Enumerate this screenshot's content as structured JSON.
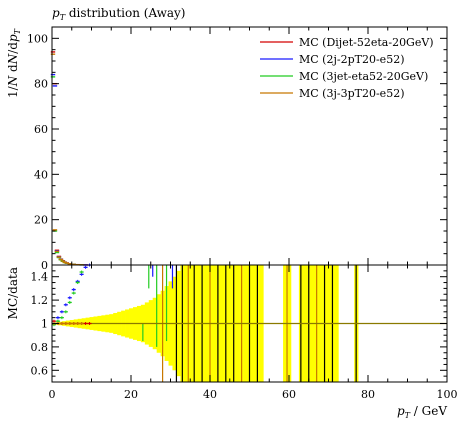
{
  "chart_data": [
    {
      "panel": "main",
      "type": "scatter",
      "title_base": "p",
      "title_sub": "T",
      "title_rest": " distribution (Away)",
      "ylabel_prefix": "1/N dN/dp",
      "ylabel_sub": "T",
      "xlim": [
        0,
        100
      ],
      "ylim": [
        0,
        105
      ],
      "yticks": [
        0,
        20,
        40,
        60,
        80,
        100
      ],
      "series": [
        {
          "name": "MC (Dijet-52eta-20GeV)",
          "color": "#d40000",
          "points": [
            [
              0.25,
              94
            ],
            [
              0.75,
              80
            ],
            [
              1.25,
              6.5
            ],
            [
              1.75,
              3.8
            ],
            [
              2.25,
              2.6
            ],
            [
              2.75,
              1.9
            ],
            [
              3.25,
              1.3
            ],
            [
              3.75,
              0.9
            ],
            [
              4.5,
              0.55
            ],
            [
              5.5,
              0.3
            ],
            [
              6.5,
              0.15
            ],
            [
              7.5,
              0.08
            ],
            [
              8.5,
              0.04
            ]
          ]
        },
        {
          "name": "MC (2j-2pT20-e52)",
          "color": "#1a1aff",
          "points": [
            [
              0.25,
              84
            ],
            [
              0.75,
              79
            ],
            [
              1.25,
              6.2
            ],
            [
              1.75,
              3.6
            ],
            [
              2.25,
              2.5
            ],
            [
              2.75,
              1.8
            ],
            [
              3.25,
              1.2
            ],
            [
              3.75,
              0.85
            ],
            [
              4.5,
              0.5
            ],
            [
              5.5,
              0.28
            ],
            [
              6.5,
              0.14
            ],
            [
              7.5,
              0.07
            ],
            [
              8.5,
              0.035
            ]
          ]
        },
        {
          "name": "MC (3jet-eta52-20GeV)",
          "color": "#22cc22",
          "points": [
            [
              0.25,
              83
            ],
            [
              0.75,
              15
            ],
            [
              1.25,
              5.5
            ],
            [
              1.75,
              3.3
            ],
            [
              2.25,
              2.3
            ],
            [
              2.75,
              1.6
            ],
            [
              3.25,
              1.1
            ],
            [
              3.75,
              0.8
            ],
            [
              4.5,
              0.45
            ],
            [
              5.5,
              0.25
            ],
            [
              6.5,
              0.12
            ],
            [
              7.5,
              0.06
            ]
          ]
        },
        {
          "name": "MC (3j-3pT20-e52)",
          "color": "#c87800",
          "points": [
            [
              0.25,
              93
            ],
            [
              0.75,
              15.5
            ],
            [
              1.25,
              6.0
            ],
            [
              1.75,
              3.5
            ],
            [
              2.25,
              2.45
            ],
            [
              2.75,
              1.75
            ],
            [
              3.25,
              1.15
            ],
            [
              3.75,
              0.85
            ],
            [
              4.5,
              0.5
            ],
            [
              5.5,
              0.27
            ],
            [
              6.5,
              0.13
            ],
            [
              7.5,
              0.07
            ]
          ]
        }
      ]
    },
    {
      "panel": "ratio",
      "type": "scatter",
      "ylabel": "MC/data",
      "xlabel_base": "p",
      "xlabel_sub": "T",
      "xlabel_rest": " / GeV",
      "xlim": [
        0,
        100
      ],
      "ylim": [
        0.5,
        1.5
      ],
      "yticks": [
        0.6,
        0.8,
        1.0,
        1.2,
        1.4
      ],
      "ytick_labels": [
        "0.6",
        "0.8",
        "1",
        "1.2",
        "1.4"
      ],
      "xticks": [
        0,
        20,
        40,
        60,
        80,
        100
      ],
      "data_band_color": "#ffff00",
      "reference_line": 1,
      "band": [
        [
          1,
          0.01
        ],
        [
          2,
          0.015
        ],
        [
          3,
          0.02
        ],
        [
          4,
          0.025
        ],
        [
          5,
          0.03
        ],
        [
          6,
          0.035
        ],
        [
          7,
          0.04
        ],
        [
          8,
          0.045
        ],
        [
          9,
          0.05
        ],
        [
          10,
          0.055
        ],
        [
          11,
          0.06
        ],
        [
          12,
          0.065
        ],
        [
          13,
          0.07
        ],
        [
          14,
          0.075
        ],
        [
          15,
          0.08
        ],
        [
          16,
          0.09
        ],
        [
          17,
          0.1
        ],
        [
          18,
          0.11
        ],
        [
          19,
          0.12
        ],
        [
          20,
          0.13
        ],
        [
          21,
          0.14
        ],
        [
          22,
          0.15
        ],
        [
          23,
          0.16
        ],
        [
          24,
          0.18
        ],
        [
          25,
          0.2
        ],
        [
          26,
          0.22
        ],
        [
          27,
          0.25
        ],
        [
          28,
          0.28
        ],
        [
          29,
          0.32
        ],
        [
          30,
          0.36
        ],
        [
          31,
          0.4
        ],
        [
          32,
          0.45
        ],
        [
          33,
          0.5
        ],
        [
          34,
          0.5
        ],
        [
          35,
          0.5
        ],
        [
          36,
          0.5
        ],
        [
          37,
          0.5
        ],
        [
          38,
          0.5
        ],
        [
          39,
          0.5
        ],
        [
          40,
          0.5
        ],
        [
          41,
          0.5
        ],
        [
          42,
          0.5
        ],
        [
          43,
          0.5
        ],
        [
          44,
          0.5
        ],
        [
          45,
          0.5
        ],
        [
          46,
          0.5
        ],
        [
          47,
          0.5
        ],
        [
          48,
          0.5
        ],
        [
          49,
          0.5
        ],
        [
          50,
          0.5
        ],
        [
          51,
          0.5
        ],
        [
          52,
          0.5
        ],
        [
          53,
          0.5
        ],
        [
          59,
          0.5
        ],
        [
          60,
          0.5
        ],
        [
          63,
          0.5
        ],
        [
          64,
          0.5
        ],
        [
          65,
          0.5
        ],
        [
          66,
          0.5
        ],
        [
          67,
          0.5
        ],
        [
          68,
          0.5
        ],
        [
          69,
          0.5
        ],
        [
          70,
          0.5
        ],
        [
          71,
          0.5
        ],
        [
          72,
          0.5
        ],
        [
          77,
          0.5
        ]
      ],
      "series": [
        {
          "name": "MC (Dijet-52eta-20GeV)",
          "color": "#d40000",
          "points": [
            [
              0.5,
              1.02
            ],
            [
              1.5,
              1.0
            ],
            [
              2.5,
              1.0
            ],
            [
              3.5,
              1.0
            ],
            [
              4.5,
              1.0
            ],
            [
              5.5,
              1.0
            ],
            [
              6.5,
              1.0
            ],
            [
              7.5,
              1.0
            ],
            [
              8.5,
              1.0
            ],
            [
              9.5,
              1.0
            ]
          ]
        },
        {
          "name": "MC (2j-2pT20-e52)",
          "color": "#1a1aff",
          "points": [
            [
              0.5,
              1.0
            ],
            [
              1.5,
              1.05
            ],
            [
              2.5,
              1.1
            ],
            [
              3.5,
              1.16
            ],
            [
              4.5,
              1.22
            ],
            [
              5.5,
              1.29
            ],
            [
              6.5,
              1.36
            ],
            [
              7.5,
              1.42
            ],
            [
              8.5,
              1.48
            ],
            [
              9.5,
              1.5
            ]
          ]
        },
        {
          "name": "MC (3jet-eta52-20GeV)",
          "color": "#22cc22",
          "points": [
            [
              0.5,
              0.99
            ],
            [
              1.5,
              1.02
            ],
            [
              2.5,
              1.05
            ],
            [
              3.5,
              1.1
            ],
            [
              4.5,
              1.18
            ],
            [
              5.5,
              1.26
            ],
            [
              6.5,
              1.35
            ],
            [
              7.5,
              1.44
            ]
          ]
        },
        {
          "name": "MC (3j-3pT20-e52)",
          "color": "#c87800",
          "points": [
            [
              0.5,
              1.0
            ],
            [
              1.5,
              1.0
            ],
            [
              2.5,
              1.0
            ],
            [
              3.5,
              1.0
            ],
            [
              4.5,
              1.0
            ],
            [
              5.5,
              1.0
            ],
            [
              6.5,
              1.0
            ],
            [
              7.5,
              1.0
            ]
          ]
        }
      ],
      "spikes": [
        {
          "x": 23,
          "lo": 0.85,
          "hi": 1.0,
          "color": "#22cc22"
        },
        {
          "x": 24.5,
          "lo": 1.3,
          "hi": 1.5,
          "color": "#22cc22"
        },
        {
          "x": 25.5,
          "lo": 1.4,
          "hi": 1.5,
          "color": "#1a1aff"
        },
        {
          "x": 26.5,
          "lo": 0.8,
          "hi": 1.5,
          "color": "#22cc22"
        },
        {
          "x": 28,
          "lo": 0.5,
          "hi": 1.5,
          "color": "#c87800"
        },
        {
          "x": 29,
          "lo": 0.85,
          "hi": 1.5,
          "color": "#22cc22"
        },
        {
          "x": 30.5,
          "lo": 1.3,
          "hi": 1.5,
          "color": "#1a1aff"
        },
        {
          "x": 31.5,
          "lo": 0.5,
          "hi": 1.5,
          "color": "#000000"
        },
        {
          "x": 33,
          "lo": 0.5,
          "hi": 1.5,
          "color": "#000000"
        },
        {
          "x": 34.5,
          "lo": 0.5,
          "hi": 1.5,
          "color": "#c87800"
        },
        {
          "x": 36,
          "lo": 0.5,
          "hi": 1.5,
          "color": "#000000"
        },
        {
          "x": 38,
          "lo": 0.5,
          "hi": 1.5,
          "color": "#000000"
        },
        {
          "x": 40,
          "lo": 0.5,
          "hi": 1.5,
          "color": "#c87800"
        },
        {
          "x": 42,
          "lo": 0.5,
          "hi": 1.5,
          "color": "#000000"
        },
        {
          "x": 44,
          "lo": 0.5,
          "hi": 1.5,
          "color": "#000000"
        },
        {
          "x": 46,
          "lo": 0.5,
          "hi": 1.5,
          "color": "#000000"
        },
        {
          "x": 48,
          "lo": 0.5,
          "hi": 1.5,
          "color": "#c87800"
        },
        {
          "x": 50,
          "lo": 0.5,
          "hi": 1.5,
          "color": "#000000"
        },
        {
          "x": 52,
          "lo": 0.5,
          "hi": 1.5,
          "color": "#000000"
        },
        {
          "x": 59.5,
          "lo": 0.5,
          "hi": 1.5,
          "color": "#c87800"
        },
        {
          "x": 63,
          "lo": 0.5,
          "hi": 1.5,
          "color": "#000000"
        },
        {
          "x": 65,
          "lo": 0.5,
          "hi": 1.5,
          "color": "#000000"
        },
        {
          "x": 67,
          "lo": 0.5,
          "hi": 1.5,
          "color": "#c87800"
        },
        {
          "x": 69,
          "lo": 0.5,
          "hi": 1.5,
          "color": "#000000"
        },
        {
          "x": 71,
          "lo": 0.5,
          "hi": 1.5,
          "color": "#000000"
        },
        {
          "x": 77,
          "lo": 0.5,
          "hi": 1.5,
          "color": "#000000"
        }
      ]
    }
  ]
}
